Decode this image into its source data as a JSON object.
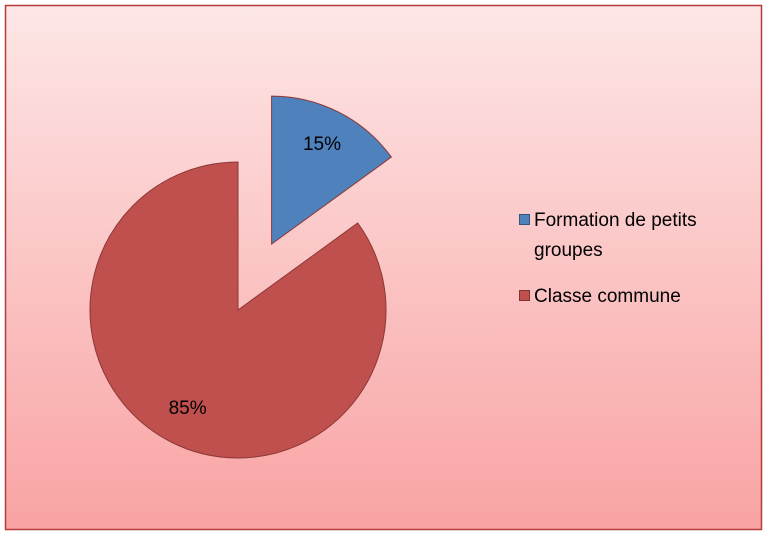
{
  "chart_data": {
    "type": "pie",
    "categories": [
      "Formation de petits groupes",
      "Classe commune"
    ],
    "values": [
      15,
      85
    ],
    "value_labels": [
      "15%",
      "85%"
    ],
    "colors": [
      "#4f81bd",
      "#c0504d"
    ],
    "legend": "right"
  }
}
